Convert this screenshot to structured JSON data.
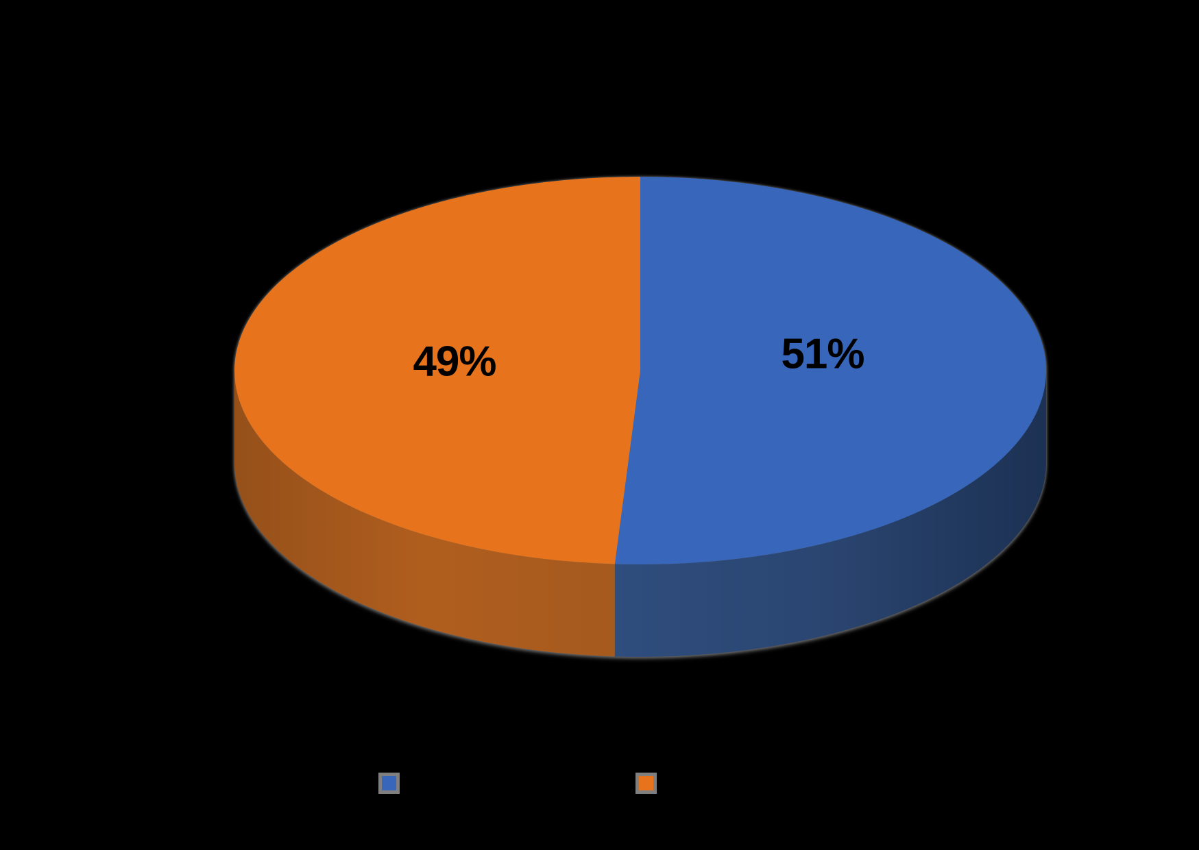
{
  "background_color": "#000000",
  "chart_data": {
    "type": "pie",
    "style": "3d",
    "start_angle_deg": 0,
    "direction": "clockwise",
    "grid": false,
    "legend_position": "bottom",
    "label_color": "#000000",
    "shadow_color": "#808080",
    "slices": [
      {
        "value": 51,
        "label": "51%",
        "top_color": "#3766BA",
        "side_gradient": [
          "#2F4D7D",
          "#2A4570",
          "#1C3153"
        ]
      },
      {
        "value": 49,
        "label": "49%",
        "top_color": "#E7741C",
        "side_gradient": [
          "#95501A",
          "#B05E1E",
          "#A55A1E"
        ]
      }
    ],
    "legend_keys": [
      {
        "swatch_color": "#3766BA",
        "frame_color": "#7F7F7F"
      },
      {
        "swatch_color": "#E7741C",
        "frame_color": "#7F7F7F"
      }
    ]
  }
}
